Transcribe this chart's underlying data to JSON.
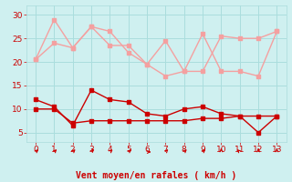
{
  "x": [
    0,
    1,
    2,
    3,
    4,
    5,
    6,
    7,
    8,
    9,
    10,
    11,
    12,
    13
  ],
  "light_line1": [
    20.5,
    29,
    23,
    27.5,
    26.5,
    22,
    19.5,
    17,
    18,
    26,
    18,
    18,
    17,
    26.5
  ],
  "light_line2": [
    20.5,
    24,
    23,
    27.5,
    23.5,
    23.5,
    19.5,
    24.5,
    18.0,
    18.0,
    25.5,
    25.0,
    25.0,
    26.5
  ],
  "red_line1": [
    12,
    10.5,
    6.5,
    14,
    12,
    11.5,
    9,
    8.5,
    10,
    10.5,
    9,
    8.5,
    5,
    8.5
  ],
  "red_line2": [
    10,
    10,
    7,
    7.5,
    7.5,
    7.5,
    7.5,
    7.5,
    7.5,
    8,
    8,
    8.5,
    8.5,
    8.5
  ],
  "arrow_angles": [
    45,
    45,
    45,
    30,
    45,
    45,
    90,
    45,
    45,
    45,
    0,
    315,
    0,
    0
  ],
  "xlabel": "Vent moyen/en rafales ( km/h )",
  "ylim": [
    3,
    32
  ],
  "yticks": [
    5,
    10,
    15,
    20,
    25,
    30
  ],
  "xticks": [
    0,
    1,
    2,
    3,
    4,
    5,
    6,
    7,
    8,
    9,
    10,
    11,
    12,
    13
  ],
  "light_color": "#f4a0a0",
  "red_color": "#cc0000",
  "bg_color": "#cff0f0",
  "grid_color": "#aadddd",
  "xlabel_color": "#cc0000",
  "xlabel_fontsize": 7.0,
  "tick_fontsize": 6.5,
  "marker_size": 2.5,
  "line_width": 1.0
}
